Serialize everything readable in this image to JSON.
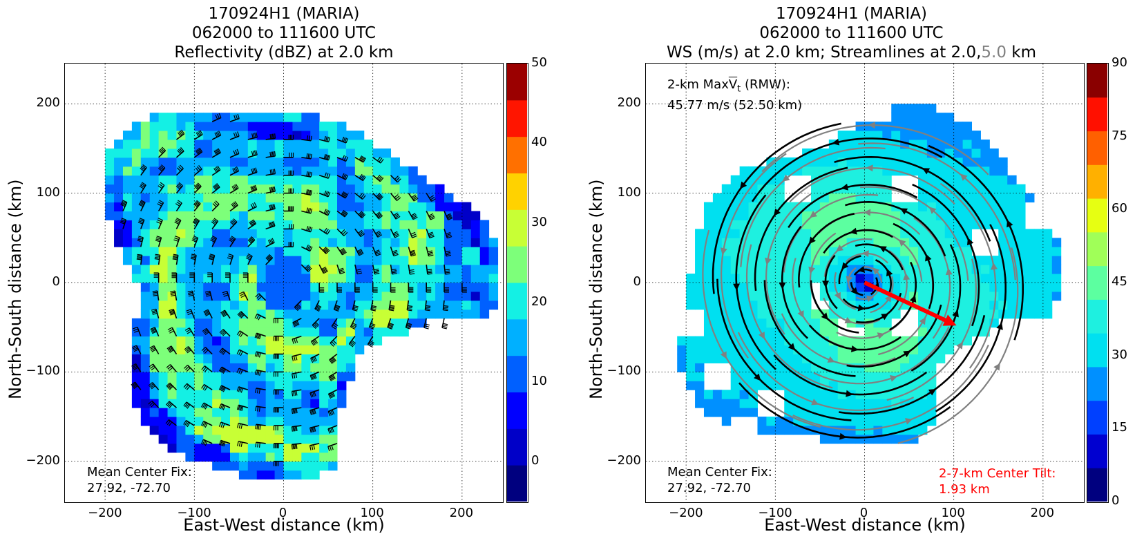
{
  "left": {
    "title_line1": "170924H1 (MARIA)",
    "title_line2": "062000 to 111600 UTC",
    "title_line3": "Reflectivity (dBZ) at 2.0 km",
    "xlabel": "East-West distance (km)",
    "ylabel": "North-South distance (km)",
    "note_label": "Mean Center Fix:",
    "note_value": "27.92, -72.70",
    "colorbar": {
      "min": -5,
      "max": 50,
      "colors": [
        "#00007f",
        "#0000c8",
        "#0000ff",
        "#0060ff",
        "#00b0ff",
        "#14f0e4",
        "#7dff7a",
        "#c8ff35",
        "#ffd200",
        "#ff7000",
        "#ff1500",
        "#9b0000"
      ],
      "tick_labels": [
        "0",
        "10",
        "20",
        "30",
        "40",
        "50"
      ],
      "tick_values": [
        0,
        10,
        20,
        30,
        40,
        50
      ]
    }
  },
  "right": {
    "title_line1": "170924H1 (MARIA)",
    "title_line2": "062000 to 111600 UTC",
    "title_line3_a": "WS (m/s) at 2.0 km; Streamlines at 2.0,",
    "title_line3_b": "5.0",
    "title_line3_c": " km",
    "xlabel": "East-West distance (km)",
    "ylabel": "North-South distance (km)",
    "rmw_line1_a": "2-km Max",
    "rmw_line1_v": "V",
    "rmw_line1_sub": "t",
    "rmw_line1_b": " (RMW):",
    "rmw_line2": "45.77 m/s (52.50 km)",
    "note_label": "Mean Center Fix:",
    "note_value": "27.92, -72.70",
    "tilt_label": "2-7-km Center Tilt:",
    "tilt_value": "1.93 km",
    "colorbar": {
      "min": 0,
      "max": 90,
      "colors": [
        "#00007f",
        "#0000d0",
        "#0040ff",
        "#0090ff",
        "#00e0f0",
        "#1ef0e0",
        "#5cffa0",
        "#a0ff58",
        "#e6ff12",
        "#ffb000",
        "#ff6000",
        "#ff1000",
        "#8a0000"
      ],
      "tick_labels": [
        "0",
        "15",
        "30",
        "45",
        "60",
        "75",
        "90"
      ],
      "tick_values": [
        0,
        15,
        30,
        45,
        60,
        75,
        90
      ]
    },
    "tilt_vector": {
      "x0": 0,
      "y0": 0,
      "x1": 103,
      "y1": -48,
      "color": "#ff0000"
    }
  },
  "axes": {
    "xlim": [
      -245,
      245
    ],
    "ylim": [
      -245,
      245
    ],
    "ticks": [
      -200,
      -100,
      0,
      100,
      200
    ],
    "tick_labels": [
      "−200",
      "−100",
      "0",
      "100",
      "200"
    ],
    "grid": "dotted"
  },
  "chart_data": [
    {
      "type": "heatmap",
      "title": "170924H1 (MARIA) 062000 to 111600 UTC Reflectivity (dBZ) at 2.0 km",
      "xlabel": "East-West distance (km)",
      "ylabel": "North-South distance (km)",
      "xlim": [
        -245,
        245
      ],
      "ylim": [
        -245,
        245
      ],
      "field": "Reflectivity (dBZ)",
      "colorbar_range": [
        -5,
        50
      ],
      "overlay": "wind barbs",
      "center": [
        0,
        0
      ]
    },
    {
      "type": "heatmap",
      "title": "170924H1 (MARIA) 062000 to 111600 UTC WS (m/s) at 2.0 km; Streamlines at 2.0,5.0 km",
      "xlabel": "East-West distance (km)",
      "ylabel": "North-South distance (km)",
      "xlim": [
        -245,
        245
      ],
      "ylim": [
        -245,
        245
      ],
      "field": "WS (m/s)",
      "colorbar_range": [
        0,
        90
      ],
      "overlay": "streamlines at 2.0 km (black) and 5.0 km (gray)",
      "max_vt": "45.77 m/s",
      "rmw": "52.50 km",
      "center_tilt": "1.93 km"
    }
  ]
}
